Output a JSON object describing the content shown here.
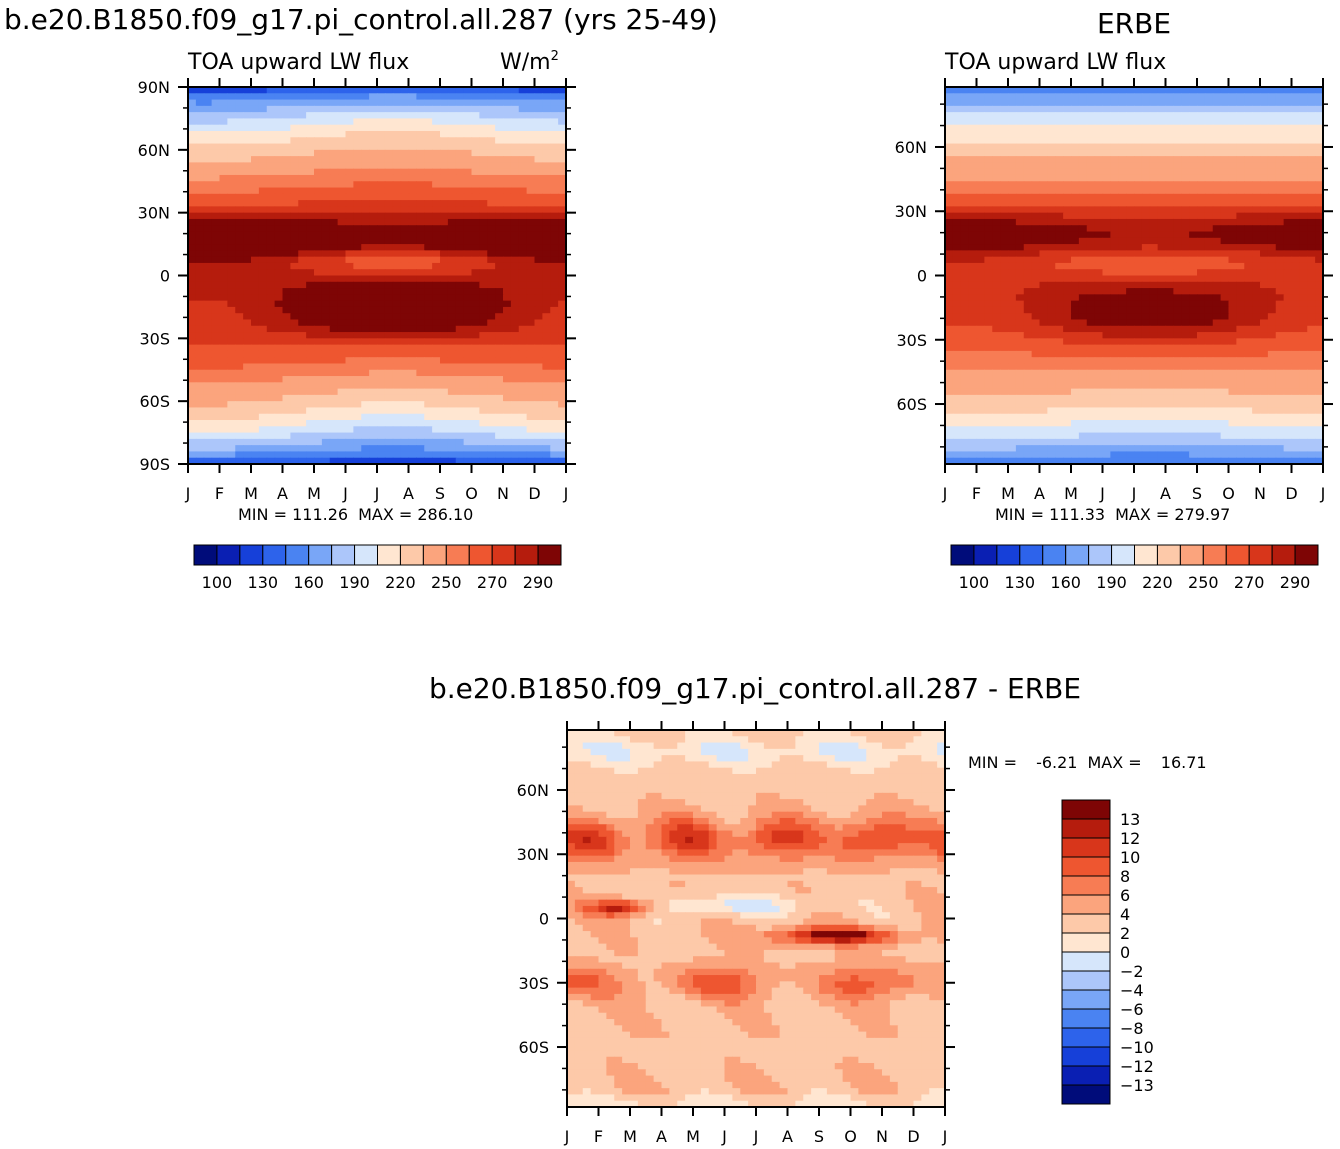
{
  "chart_data": [
    {
      "id": "model",
      "type": "contour",
      "title": "b.e20.B1850.f09_g17.pi_control.all.287 (yrs 25-49)",
      "left_subtitle": "TOA upward LW flux",
      "right_subtitle": "W/m",
      "right_subtitle_sup": "2",
      "y_ticks": [
        "90N",
        "60N",
        "30N",
        "0",
        "30S",
        "60S",
        "90S"
      ],
      "y_tick_values": [
        90,
        60,
        30,
        0,
        -30,
        -60,
        -90
      ],
      "ylim": [
        -90,
        90
      ],
      "x_ticks": [
        "J",
        "F",
        "M",
        "A",
        "M",
        "J",
        "J",
        "A",
        "S",
        "O",
        "N",
        "D",
        "J"
      ],
      "min_label": "MIN = ",
      "min": "111.26",
      "max_label": "MAX = ",
      "max": "286.10",
      "colorbar_labels": [
        "100",
        "130",
        "160",
        "190",
        "220",
        "250",
        "270",
        "290"
      ],
      "colorbar_levels": 16
    },
    {
      "id": "obs",
      "type": "contour",
      "title": "ERBE",
      "left_subtitle": "TOA upward LW flux",
      "y_ticks": [
        "60N",
        "30N",
        "0",
        "30S",
        "60S"
      ],
      "y_tick_values": [
        60,
        30,
        0,
        -30,
        -60
      ],
      "ylim": [
        -88,
        88
      ],
      "x_ticks": [
        "J",
        "F",
        "M",
        "A",
        "M",
        "J",
        "J",
        "A",
        "S",
        "O",
        "N",
        "D",
        "J"
      ],
      "min_label": "MIN = ",
      "min": "111.33",
      "max_label": "MAX = ",
      "max": "279.97",
      "colorbar_labels": [
        "100",
        "130",
        "160",
        "190",
        "220",
        "250",
        "270",
        "290"
      ],
      "colorbar_levels": 16
    },
    {
      "id": "diff",
      "type": "contour",
      "title": "b.e20.B1850.f09_g17.pi_control.all.287 - ERBE",
      "y_ticks": [
        "60N",
        "30N",
        "0",
        "30S",
        "60S"
      ],
      "y_tick_values": [
        60,
        30,
        0,
        -30,
        -60
      ],
      "ylim": [
        -88,
        88
      ],
      "x_ticks": [
        "J",
        "F",
        "M",
        "A",
        "M",
        "J",
        "J",
        "A",
        "S",
        "O",
        "N",
        "D",
        "J"
      ],
      "min_label": "MIN = ",
      "min": "-6.21",
      "max_label": "MAX = ",
      "max": "16.71",
      "colorbar_labels": [
        "13",
        "12",
        "10",
        "8",
        "6",
        "4",
        "2",
        "0",
        "−2",
        "−4",
        "−6",
        "−8",
        "−10",
        "−12",
        "−13"
      ],
      "colorbar_levels": 16
    }
  ],
  "colors": {
    "palette": [
      "#000c7a",
      "#0a1fb3",
      "#1640d9",
      "#2d63eb",
      "#4a83f2",
      "#79a6f7",
      "#acc6fa",
      "#d6e6fb",
      "#ffe6d1",
      "#fdc9a9",
      "#fba47d",
      "#f77c54",
      "#ee5630",
      "#d8361b",
      "#b51c0d",
      "#7e0505"
    ]
  }
}
